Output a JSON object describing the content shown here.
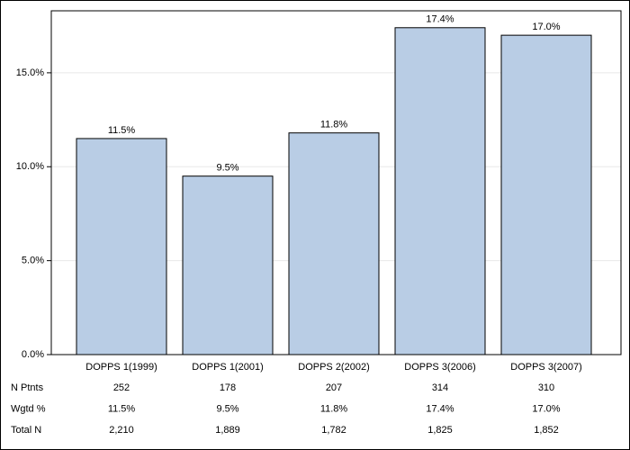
{
  "chart_data": {
    "type": "bar",
    "categories": [
      "DOPPS 1(1999)",
      "DOPPS 1(2001)",
      "DOPPS 2(2002)",
      "DOPPS 3(2006)",
      "DOPPS 3(2007)"
    ],
    "values": [
      11.5,
      9.5,
      11.8,
      17.4,
      17.0
    ],
    "value_labels": [
      "11.5%",
      "9.5%",
      "11.8%",
      "17.4%",
      "17.0%"
    ],
    "color": "#b9cde5",
    "ylim": [
      0,
      18.3
    ],
    "yticks": [
      {
        "value": 0,
        "label": "0.0%"
      },
      {
        "value": 5,
        "label": "5.0%"
      },
      {
        "value": 10,
        "label": "10.0%"
      },
      {
        "value": 15,
        "label": "15.0%"
      }
    ],
    "grid": true,
    "table": {
      "rows": [
        {
          "label": "N Ptnts",
          "values": [
            "252",
            "178",
            "207",
            "314",
            "310"
          ]
        },
        {
          "label": "Wgtd %",
          "values": [
            "11.5%",
            "9.5%",
            "11.8%",
            "17.4%",
            "17.0%"
          ]
        },
        {
          "label": "Total N",
          "values": [
            "2,210",
            "1,889",
            "1,782",
            "1,825",
            "1,852"
          ]
        }
      ]
    }
  }
}
